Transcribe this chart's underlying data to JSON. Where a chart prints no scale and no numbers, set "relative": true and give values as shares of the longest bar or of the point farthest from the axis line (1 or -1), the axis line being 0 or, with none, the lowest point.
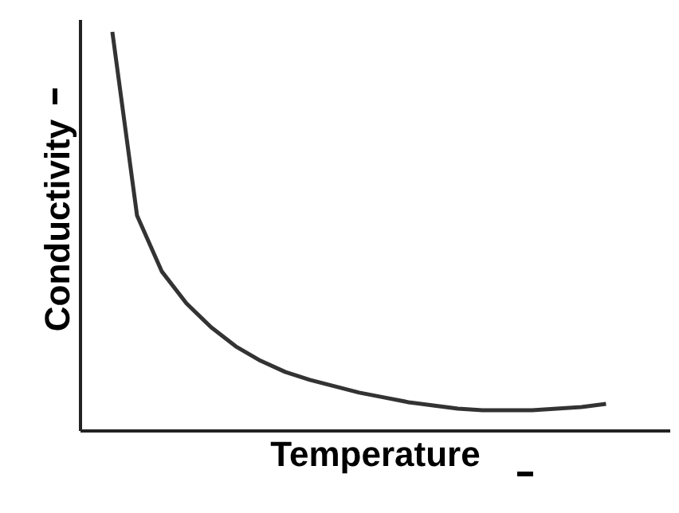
{
  "chart_data": {
    "type": "line",
    "relative": true,
    "xlabel": "Temperature",
    "ylabel": "Conductivity",
    "categories": [
      null,
      null,
      null,
      null,
      null,
      null,
      null,
      null,
      null,
      null,
      null,
      null,
      null,
      null,
      null,
      null,
      null,
      null,
      null,
      null,
      null
    ],
    "series": [
      {
        "color": "#333333",
        "values": [
          1,
          0.54,
          0.4,
          0.32,
          0.26,
          0.212,
          0.176,
          0.148,
          0.128,
          0.112,
          0.096,
          0.084,
          0.072,
          0.064,
          0.056,
          0.052,
          0.052,
          0.052,
          0.056,
          0.06,
          0.068
        ]
      }
    ]
  }
}
